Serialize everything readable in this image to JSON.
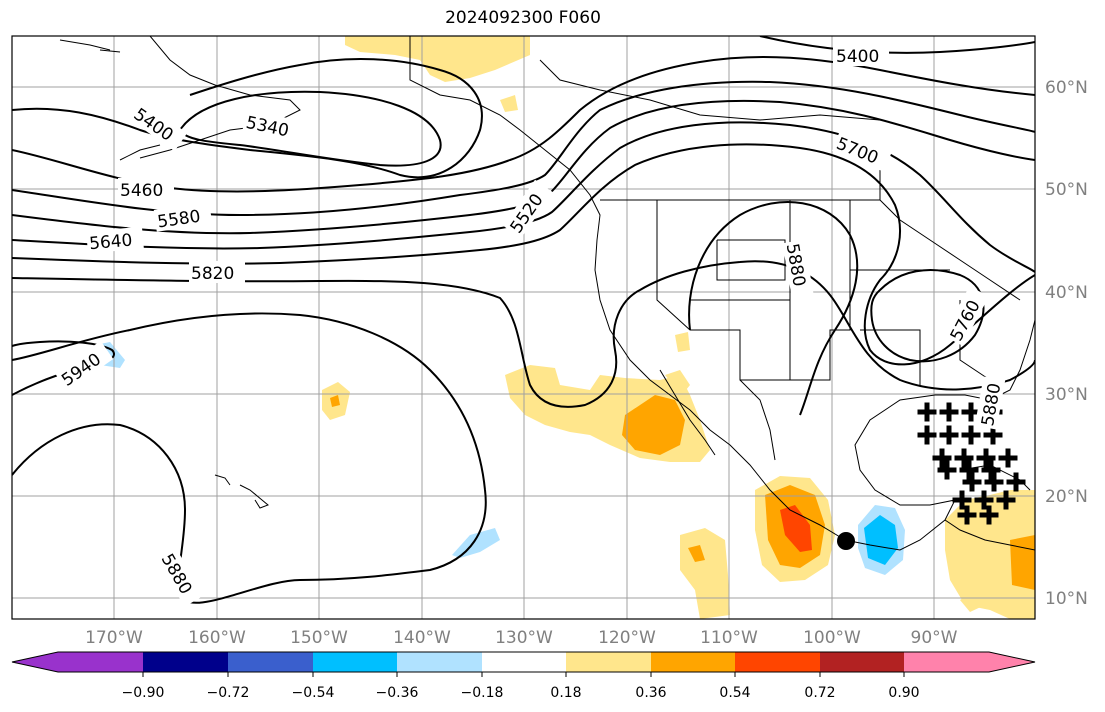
{
  "title": "2024092300 F060",
  "map": {
    "lat_labels": [
      "60°N",
      "50°N",
      "40°N",
      "30°N",
      "20°N",
      "10°N"
    ],
    "lon_labels": [
      "170°W",
      "160°W",
      "150°W",
      "140°W",
      "130°W",
      "120°W",
      "110°W",
      "100°W",
      "90°W"
    ],
    "contour_labels": [
      "5400",
      "5340",
      "5400",
      "5460",
      "5580",
      "5640",
      "5820",
      "5520",
      "5700",
      "5880",
      "5760",
      "5940",
      "5880",
      "5880"
    ],
    "grid": true
  },
  "colorbar": {
    "ticks": [
      "−0.90",
      "−0.72",
      "−0.54",
      "−0.36",
      "−0.18",
      "0.18",
      "0.36",
      "0.54",
      "0.72",
      "0.90"
    ],
    "colors": [
      "#9932cc",
      "#00008b",
      "#3a5fcd",
      "#00bfff",
      "#b0e2ff",
      "#ffffff",
      "#ffe68c",
      "#ffa500",
      "#ff4500",
      "#b22222",
      "#ff82ab"
    ]
  }
}
